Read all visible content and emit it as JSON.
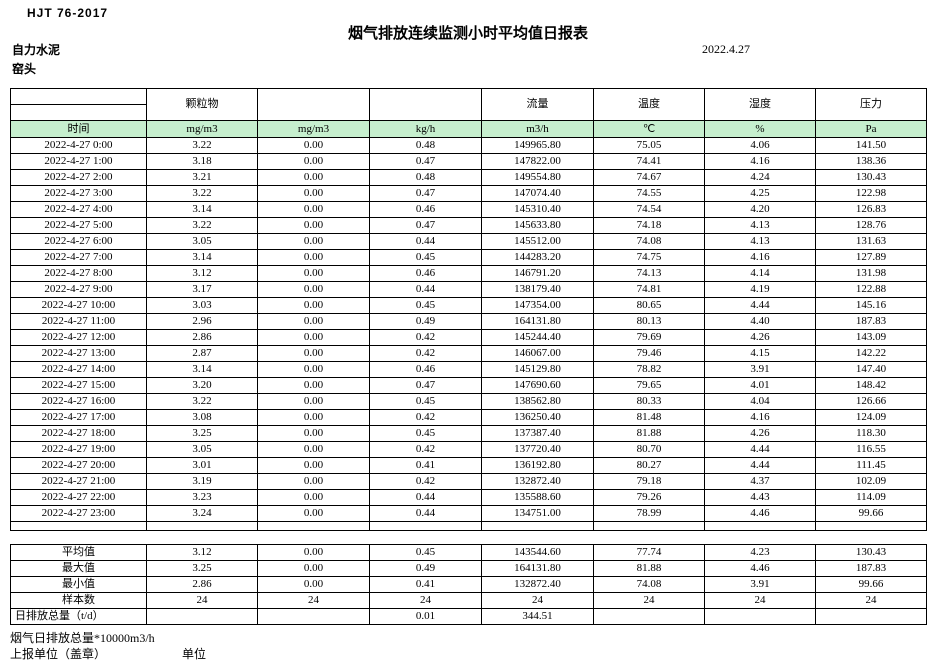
{
  "page": {
    "standard_code": "HJT 76-2017",
    "title": "烟气排放连续监测小时平均值日报表",
    "company": "自力水泥",
    "location": "窑头",
    "date": "2022.4.27"
  },
  "colors": {
    "header_fill": "#c6efce"
  },
  "table": {
    "group_headers": [
      "",
      "颗粒物",
      "",
      "",
      "流量",
      "温度",
      "湿度",
      "压力"
    ],
    "unit_headers": [
      "时间",
      "mg/m3",
      "mg/m3",
      "kg/h",
      "m3/h",
      "℃",
      "%",
      "Pa"
    ],
    "rows": [
      {
        "time": "2022-4-27 0:00",
        "values": [
          "3.22",
          "0.00",
          "0.48",
          "149965.80",
          "75.05",
          "4.06",
          "141.50"
        ]
      },
      {
        "time": "2022-4-27 1:00",
        "values": [
          "3.18",
          "0.00",
          "0.47",
          "147822.00",
          "74.41",
          "4.16",
          "138.36"
        ]
      },
      {
        "time": "2022-4-27 2:00",
        "values": [
          "3.21",
          "0.00",
          "0.48",
          "149554.80",
          "74.67",
          "4.24",
          "130.43"
        ]
      },
      {
        "time": "2022-4-27 3:00",
        "values": [
          "3.22",
          "0.00",
          "0.47",
          "147074.40",
          "74.55",
          "4.25",
          "122.98"
        ]
      },
      {
        "time": "2022-4-27 4:00",
        "values": [
          "3.14",
          "0.00",
          "0.46",
          "145310.40",
          "74.54",
          "4.20",
          "126.83"
        ]
      },
      {
        "time": "2022-4-27 5:00",
        "values": [
          "3.22",
          "0.00",
          "0.47",
          "145633.80",
          "74.18",
          "4.13",
          "128.76"
        ]
      },
      {
        "time": "2022-4-27 6:00",
        "values": [
          "3.05",
          "0.00",
          "0.44",
          "145512.00",
          "74.08",
          "4.13",
          "131.63"
        ]
      },
      {
        "time": "2022-4-27 7:00",
        "values": [
          "3.14",
          "0.00",
          "0.45",
          "144283.20",
          "74.75",
          "4.16",
          "127.89"
        ]
      },
      {
        "time": "2022-4-27 8:00",
        "values": [
          "3.12",
          "0.00",
          "0.46",
          "146791.20",
          "74.13",
          "4.14",
          "131.98"
        ]
      },
      {
        "time": "2022-4-27 9:00",
        "values": [
          "3.17",
          "0.00",
          "0.44",
          "138179.40",
          "74.81",
          "4.19",
          "122.88"
        ]
      },
      {
        "time": "2022-4-27 10:00",
        "values": [
          "3.03",
          "0.00",
          "0.45",
          "147354.00",
          "80.65",
          "4.44",
          "145.16"
        ]
      },
      {
        "time": "2022-4-27 11:00",
        "values": [
          "2.96",
          "0.00",
          "0.49",
          "164131.80",
          "80.13",
          "4.40",
          "187.83"
        ]
      },
      {
        "time": "2022-4-27 12:00",
        "values": [
          "2.86",
          "0.00",
          "0.42",
          "145244.40",
          "79.69",
          "4.26",
          "143.09"
        ]
      },
      {
        "time": "2022-4-27 13:00",
        "values": [
          "2.87",
          "0.00",
          "0.42",
          "146067.00",
          "79.46",
          "4.15",
          "142.22"
        ]
      },
      {
        "time": "2022-4-27 14:00",
        "values": [
          "3.14",
          "0.00",
          "0.46",
          "145129.80",
          "78.82",
          "3.91",
          "147.40"
        ]
      },
      {
        "time": "2022-4-27 15:00",
        "values": [
          "3.20",
          "0.00",
          "0.47",
          "147690.60",
          "79.65",
          "4.01",
          "148.42"
        ]
      },
      {
        "time": "2022-4-27 16:00",
        "values": [
          "3.22",
          "0.00",
          "0.45",
          "138562.80",
          "80.33",
          "4.04",
          "126.66"
        ]
      },
      {
        "time": "2022-4-27 17:00",
        "values": [
          "3.08",
          "0.00",
          "0.42",
          "136250.40",
          "81.48",
          "4.16",
          "124.09"
        ]
      },
      {
        "time": "2022-4-27 18:00",
        "values": [
          "3.25",
          "0.00",
          "0.45",
          "137387.40",
          "81.88",
          "4.26",
          "118.30"
        ]
      },
      {
        "time": "2022-4-27 19:00",
        "values": [
          "3.05",
          "0.00",
          "0.42",
          "137720.40",
          "80.70",
          "4.44",
          "116.55"
        ]
      },
      {
        "time": "2022-4-27 20:00",
        "values": [
          "3.01",
          "0.00",
          "0.41",
          "136192.80",
          "80.27",
          "4.44",
          "111.45"
        ]
      },
      {
        "time": "2022-4-27 21:00",
        "values": [
          "3.19",
          "0.00",
          "0.42",
          "132872.40",
          "79.18",
          "4.37",
          "102.09"
        ]
      },
      {
        "time": "2022-4-27 22:00",
        "values": [
          "3.23",
          "0.00",
          "0.44",
          "135588.60",
          "79.26",
          "4.43",
          "114.09"
        ]
      },
      {
        "time": "2022-4-27 23:00",
        "values": [
          "3.24",
          "0.00",
          "0.44",
          "134751.00",
          "78.99",
          "4.46",
          "99.66"
        ]
      }
    ],
    "summary": [
      {
        "label": "平均值",
        "values": [
          "3.12",
          "0.00",
          "0.45",
          "143544.60",
          "77.74",
          "4.23",
          "130.43"
        ]
      },
      {
        "label": "最大值",
        "values": [
          "3.25",
          "0.00",
          "0.49",
          "164131.80",
          "81.88",
          "4.46",
          "187.83"
        ]
      },
      {
        "label": "最小值",
        "values": [
          "2.86",
          "0.00",
          "0.41",
          "132872.40",
          "74.08",
          "3.91",
          "99.66"
        ]
      },
      {
        "label": "样本数",
        "values": [
          "24",
          "24",
          "24",
          "24",
          "24",
          "24",
          "24"
        ]
      },
      {
        "label": "日排放总量（t/d）",
        "values": [
          "",
          "",
          "0.01",
          "344.51",
          "",
          "",
          ""
        ]
      }
    ]
  },
  "footer": {
    "note": "烟气日排放总量*10000m3/h",
    "report_unit_label": "上报单位（盖章）",
    "unit_label": "单位"
  }
}
